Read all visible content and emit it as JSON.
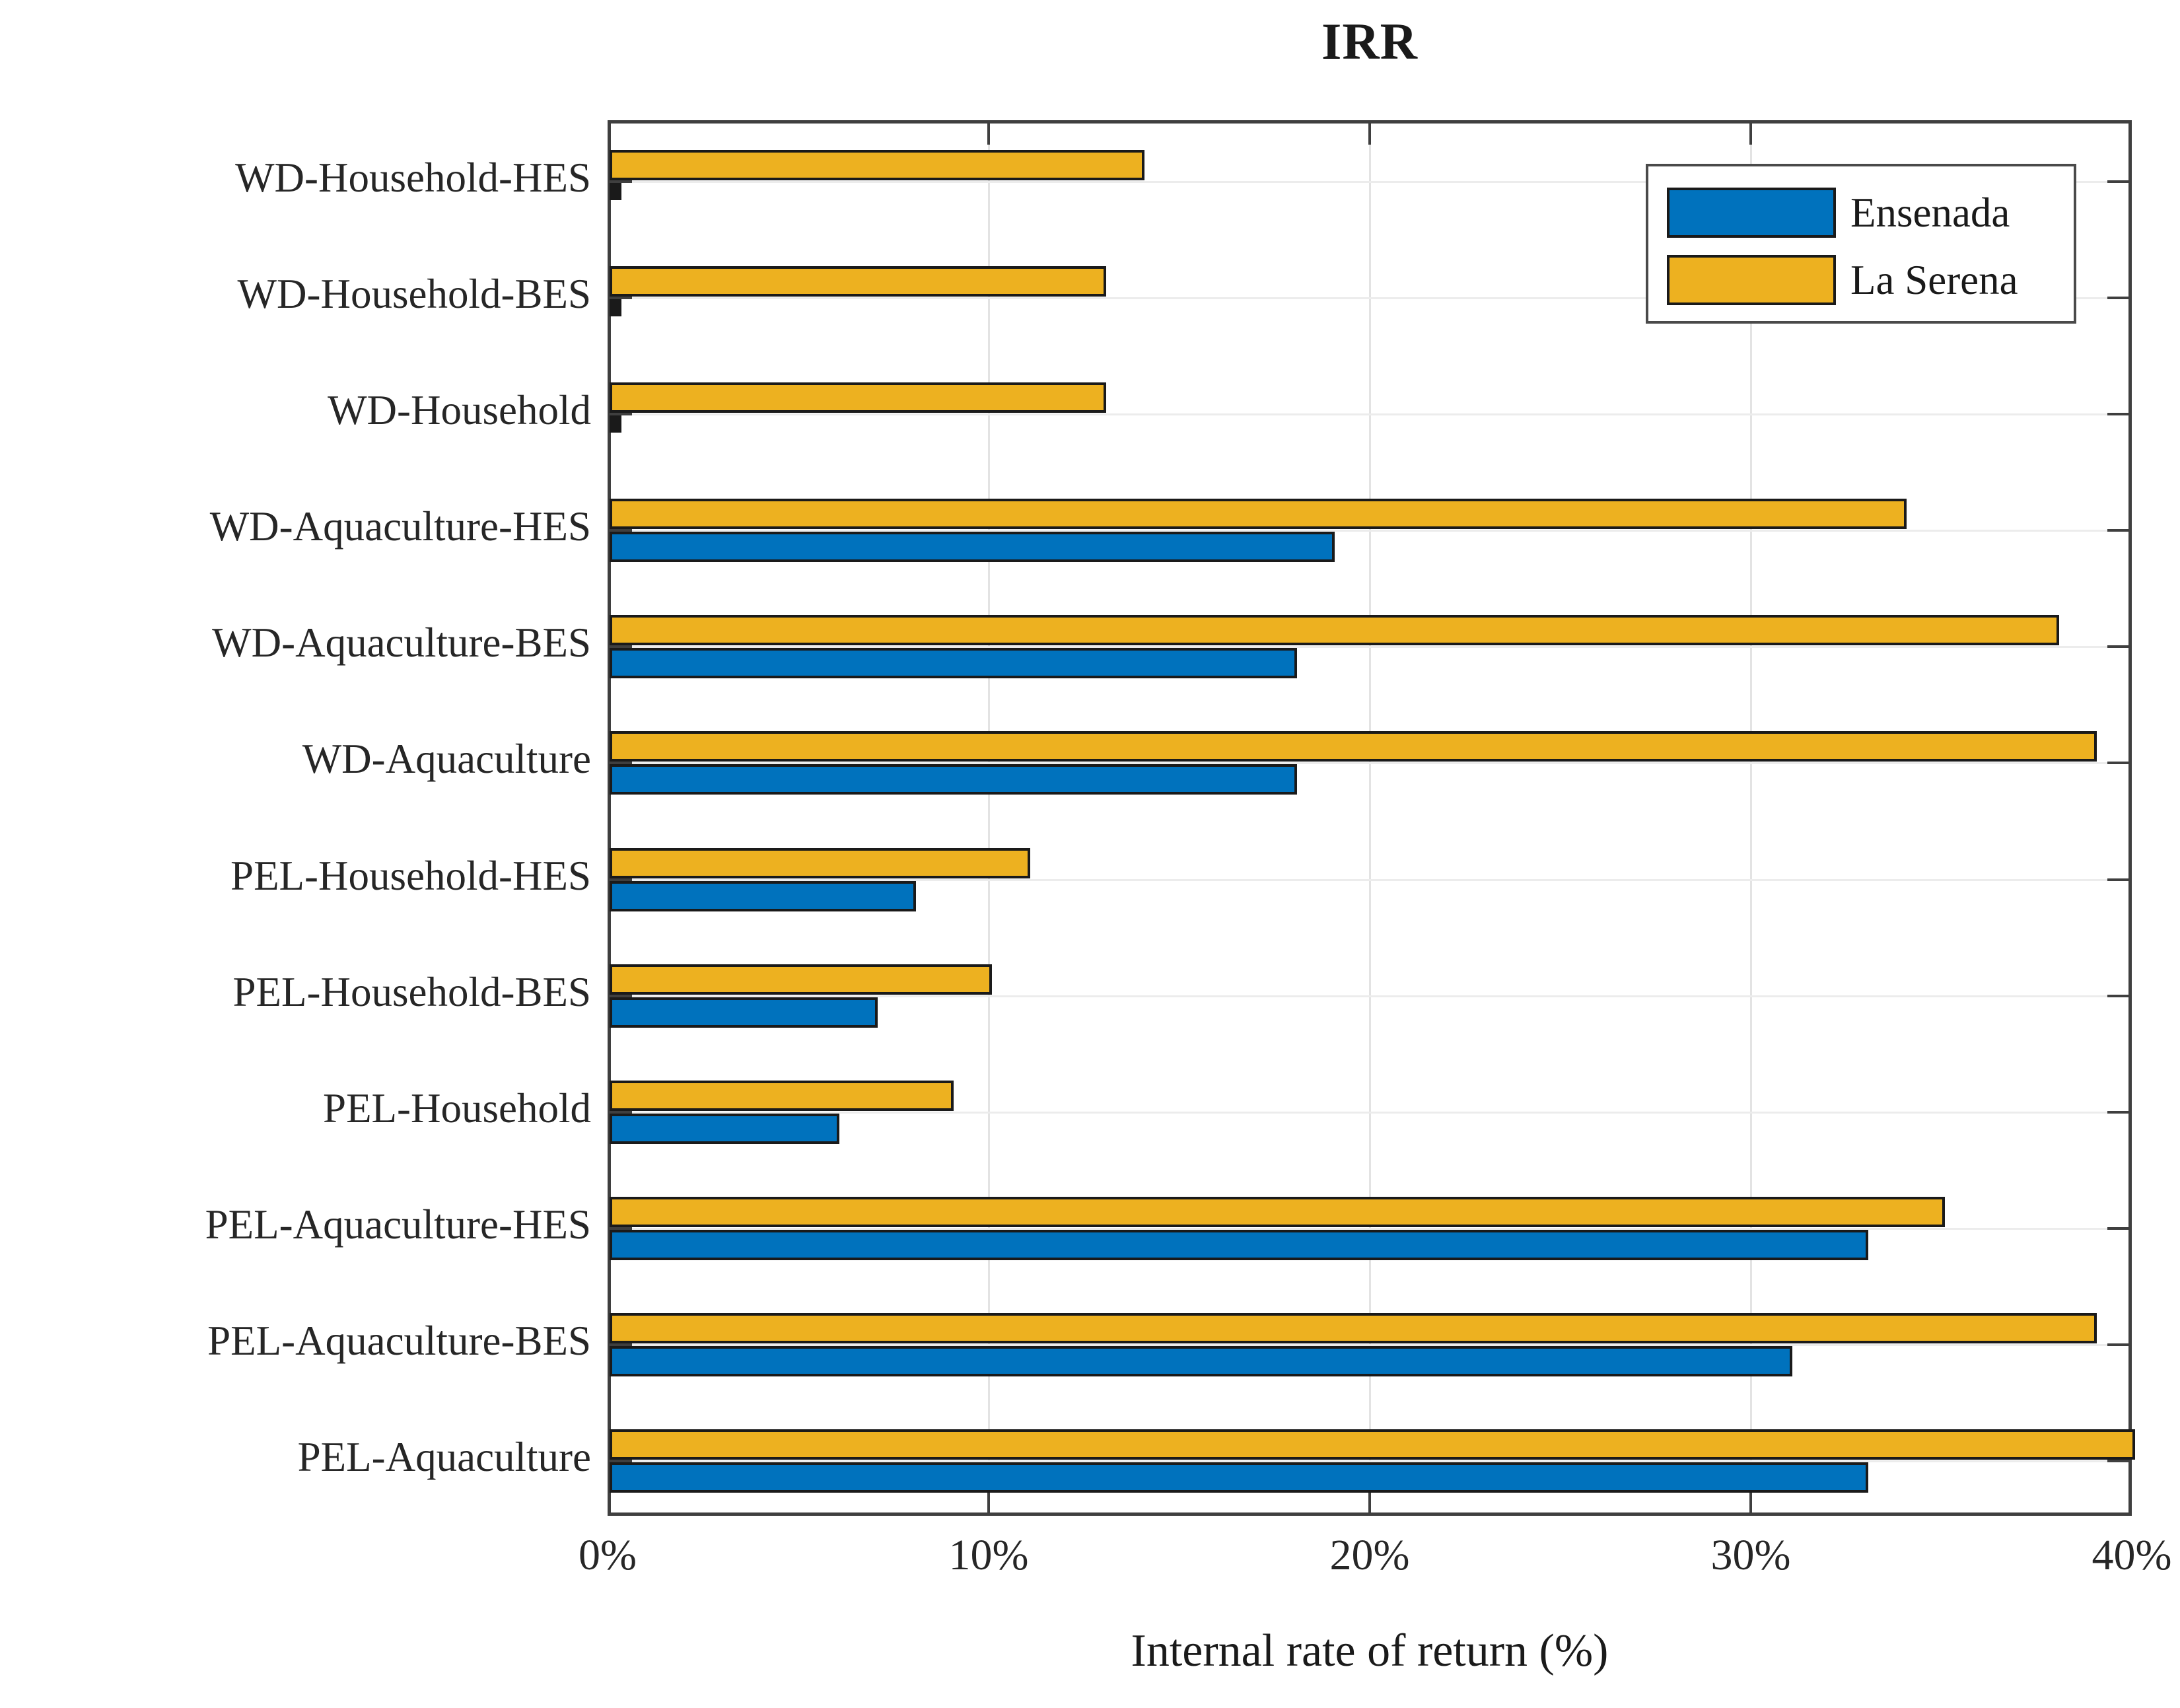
{
  "chart_data": {
    "type": "bar",
    "orientation": "horizontal",
    "title": "IRR",
    "xlabel": "Internal rate of return (%)",
    "xlim": [
      0,
      40
    ],
    "xticks": [
      {
        "value": 0,
        "label": "0%"
      },
      {
        "value": 10,
        "label": "10%"
      },
      {
        "value": 20,
        "label": "20%"
      },
      {
        "value": 30,
        "label": "30%"
      },
      {
        "value": 40,
        "label": "40%"
      }
    ],
    "grid": true,
    "legend_position": "top-right",
    "categories": [
      "WD-Household-HES",
      "WD-Household-BES",
      "WD-Household",
      "WD-Aquaculture-HES",
      "WD-Aquaculture-BES",
      "WD-Aquaculture",
      "PEL-Household-HES",
      "PEL-Household-BES",
      "PEL-Household",
      "PEL-Aquaculture-HES",
      "PEL-Aquaculture-BES",
      "PEL-Aquaculture"
    ],
    "series": [
      {
        "name": "Ensenada",
        "color": "#0072BD",
        "values": [
          0,
          0,
          0,
          19,
          18,
          18,
          8,
          7,
          6,
          33,
          31,
          33
        ]
      },
      {
        "name": "La Serena",
        "color": "#EDB120",
        "values": [
          14,
          13,
          13,
          34,
          38,
          39,
          11,
          10,
          9,
          35,
          39,
          40
        ]
      }
    ]
  },
  "colors": {
    "bar_edge": "#1a1a1a",
    "axis_box": "#3f3f3f",
    "grid_vertical": "#e3e3e3",
    "grid_horizontal": "#ececec",
    "background": "#ffffff",
    "text": "#262626"
  }
}
